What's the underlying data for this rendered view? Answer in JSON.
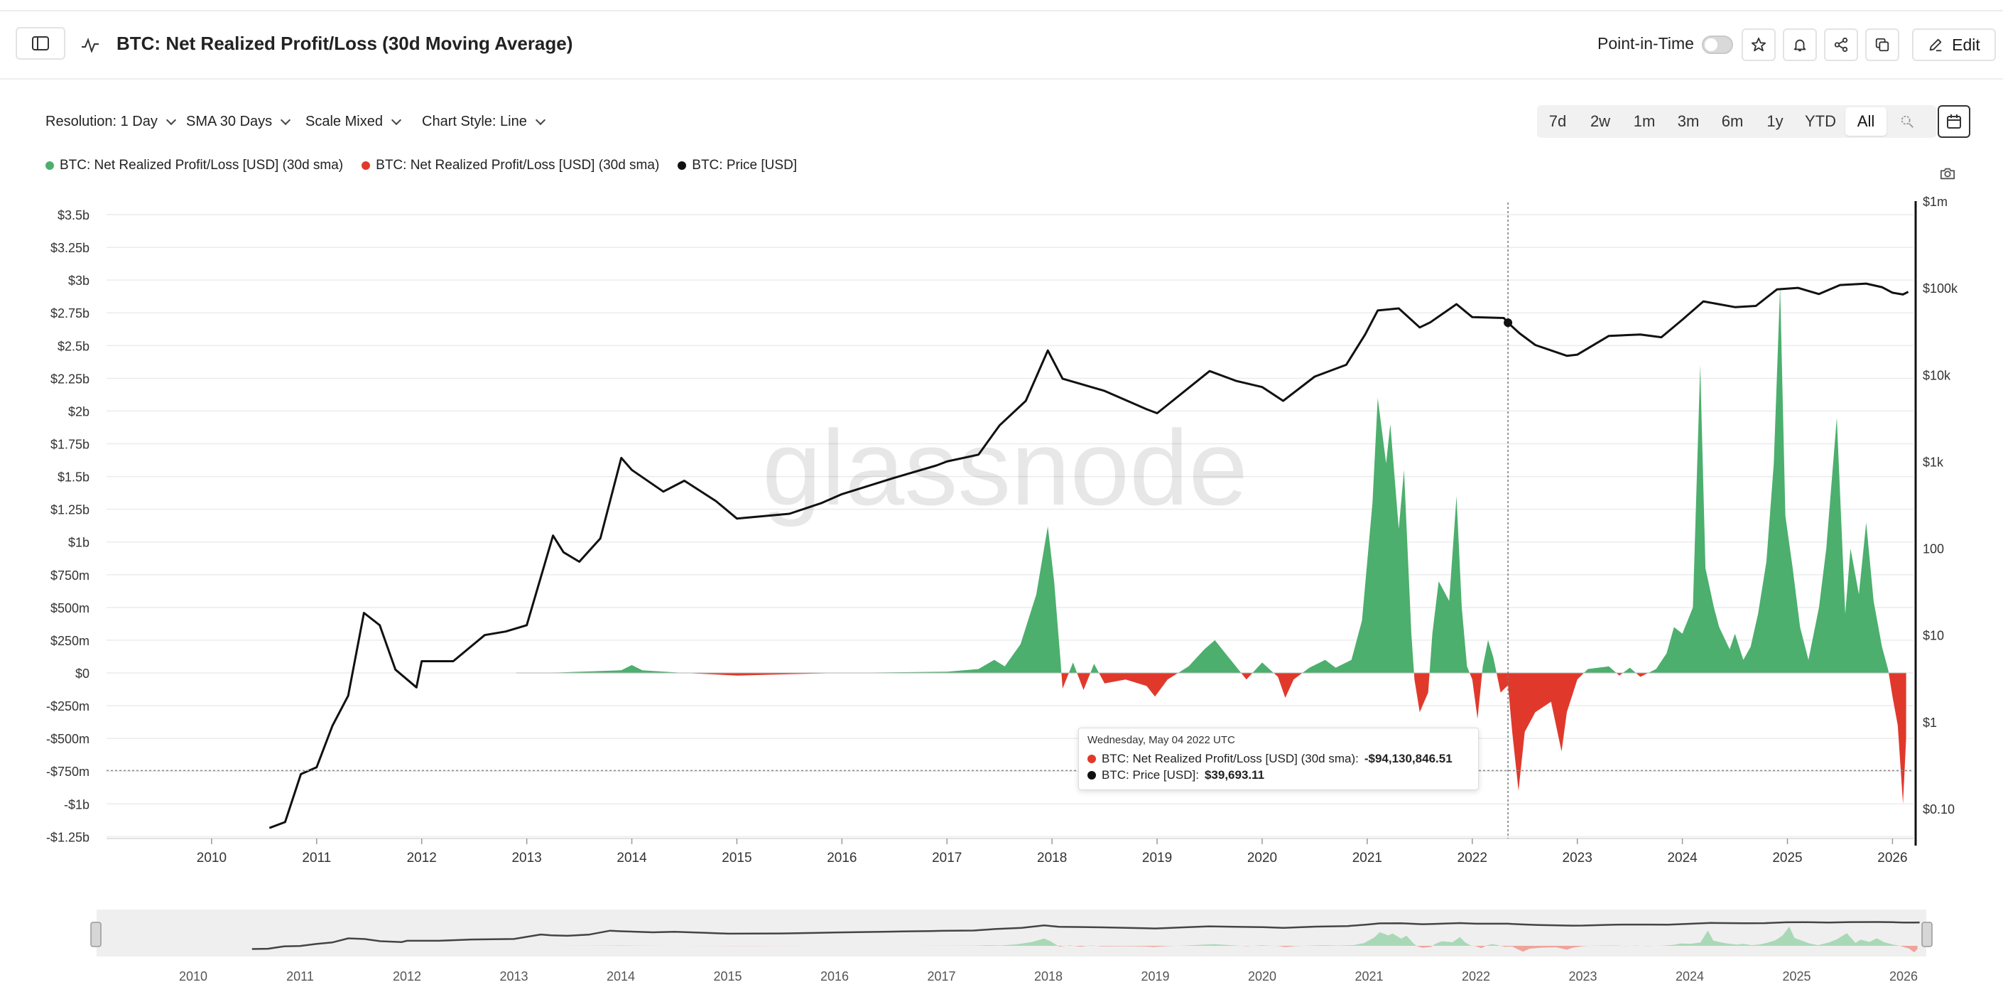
{
  "header": {
    "title": "BTC: Net Realized Profit/Loss (30d Moving Average)",
    "point_in_time_label": "Point-in-Time",
    "edit_label": "Edit"
  },
  "controls": {
    "resolution": "Resolution: 1 Day",
    "sma": "SMA 30 Days",
    "scale": "Scale Mixed",
    "chart_style": "Chart Style: Line"
  },
  "ranges": [
    "7d",
    "2w",
    "1m",
    "3m",
    "6m",
    "1y",
    "YTD",
    "All"
  ],
  "active_range": "All",
  "legend": [
    {
      "label": "BTC: Net Realized Profit/Loss [USD] (30d sma)",
      "color": "#4caf6d"
    },
    {
      "label": "BTC: Net Realized Profit/Loss [USD] (30d sma)",
      "color": "#e0392b"
    },
    {
      "label": "BTC: Price [USD]",
      "color": "#111111"
    }
  ],
  "watermark": "glassnode",
  "tooltip": {
    "date": "Wednesday, May 04 2022 UTC",
    "pnl_label": "BTC: Net Realized Profit/Loss [USD] (30d sma):",
    "pnl_value": "-$94,130,846.51",
    "price_label": "BTC: Price [USD]:",
    "price_value": "$39,693.11"
  },
  "chart_data": {
    "type": "area",
    "title": "BTC: Net Realized Profit/Loss (30d Moving Average)",
    "left_axis_ticks": [
      "$3.5b",
      "$3.25b",
      "$3b",
      "$2.75b",
      "$2.5b",
      "$2.25b",
      "$2b",
      "$1.75b",
      "$1.5b",
      "$1.25b",
      "$1b",
      "$750m",
      "$500m",
      "$250m",
      "$0",
      "-$250m",
      "-$500m",
      "-$750m",
      "-$1b",
      "-$1.25b"
    ],
    "left_axis_range": [
      -1250000000.0,
      3500000000.0
    ],
    "right_axis_ticks": [
      "$1m",
      "$100k",
      "$10k",
      "$1k",
      "100",
      "$10",
      "$1",
      "$0.10"
    ],
    "right_axis_scale": "log",
    "right_axis_range": [
      0.1,
      1000000
    ],
    "x_ticks": [
      "2010",
      "2011",
      "2012",
      "2013",
      "2014",
      "2015",
      "2016",
      "2017",
      "2018",
      "2019",
      "2020",
      "2021",
      "2022",
      "2023",
      "2024",
      "2025",
      "2026"
    ],
    "x_range": [
      2009.0,
      2026.2
    ],
    "grid": true,
    "legend_position": "top-left",
    "series": [
      {
        "name": "BTC: Net Realized Profit/Loss [USD] (30d sma)",
        "unit": "USD",
        "color_positive": "#4caf6d",
        "color_negative": "#e0392b",
        "points": [
          [
            2012.9,
            0
          ],
          [
            2013.3,
            3000000.0
          ],
          [
            2013.9,
            20000000.0
          ],
          [
            2014.0,
            60000000.0
          ],
          [
            2014.1,
            20000000.0
          ],
          [
            2014.5,
            0
          ],
          [
            2015.0,
            -20000000.0
          ],
          [
            2015.5,
            -10000000.0
          ],
          [
            2016.0,
            0
          ],
          [
            2016.5,
            5000000.0
          ],
          [
            2017.0,
            10000000.0
          ],
          [
            2017.3,
            30000000.0
          ],
          [
            2017.45,
            100000000.0
          ],
          [
            2017.55,
            50000000.0
          ],
          [
            2017.7,
            220000000.0
          ],
          [
            2017.85,
            600000000.0
          ],
          [
            2017.96,
            1120000000.0
          ],
          [
            2018.02,
            700000000.0
          ],
          [
            2018.08,
            100000000.0
          ],
          [
            2018.1,
            -120000000.0
          ],
          [
            2018.2,
            80000000.0
          ],
          [
            2018.3,
            -130000000.0
          ],
          [
            2018.4,
            70000000.0
          ],
          [
            2018.5,
            -80000000.0
          ],
          [
            2018.7,
            -50000000.0
          ],
          [
            2018.9,
            -100000000.0
          ],
          [
            2018.98,
            -180000000.0
          ],
          [
            2019.1,
            -50000000.0
          ],
          [
            2019.3,
            50000000.0
          ],
          [
            2019.45,
            180000000.0
          ],
          [
            2019.55,
            250000000.0
          ],
          [
            2019.65,
            150000000.0
          ],
          [
            2019.75,
            50000000.0
          ],
          [
            2019.85,
            -50000000.0
          ],
          [
            2020.0,
            80000000.0
          ],
          [
            2020.15,
            -30000000.0
          ],
          [
            2020.22,
            -190000000.0
          ],
          [
            2020.3,
            -50000000.0
          ],
          [
            2020.45,
            40000000.0
          ],
          [
            2020.6,
            100000000.0
          ],
          [
            2020.7,
            40000000.0
          ],
          [
            2020.85,
            100000000.0
          ],
          [
            2020.95,
            400000000.0
          ],
          [
            2021.0,
            850000000.0
          ],
          [
            2021.05,
            1300000000.0
          ],
          [
            2021.1,
            2100000000.0
          ],
          [
            2021.18,
            1600000000.0
          ],
          [
            2021.22,
            1900000000.0
          ],
          [
            2021.3,
            1100000000.0
          ],
          [
            2021.35,
            1550000000.0
          ],
          [
            2021.42,
            300000000.0
          ],
          [
            2021.45,
            -50000000.0
          ],
          [
            2021.5,
            -300000000.0
          ],
          [
            2021.58,
            -150000000.0
          ],
          [
            2021.62,
            300000000.0
          ],
          [
            2021.68,
            700000000.0
          ],
          [
            2021.78,
            550000000.0
          ],
          [
            2021.85,
            1350000000.0
          ],
          [
            2021.9,
            500000000.0
          ],
          [
            2021.95,
            50000000.0
          ],
          [
            2022.0,
            -50000000.0
          ],
          [
            2022.05,
            -350000000.0
          ],
          [
            2022.1,
            50000000.0
          ],
          [
            2022.15,
            250000000.0
          ],
          [
            2022.2,
            120000000.0
          ],
          [
            2022.27,
            -150000000.0
          ],
          [
            2022.34,
            -94000000.0
          ],
          [
            2022.38,
            -450000000.0
          ],
          [
            2022.44,
            -900000000.0
          ],
          [
            2022.5,
            -450000000.0
          ],
          [
            2022.6,
            -300000000.0
          ],
          [
            2022.75,
            -220000000.0
          ],
          [
            2022.85,
            -600000000.0
          ],
          [
            2022.9,
            -300000000.0
          ],
          [
            2023.0,
            -50000000.0
          ],
          [
            2023.1,
            30000000.0
          ],
          [
            2023.2,
            40000000.0
          ],
          [
            2023.3,
            50000000.0
          ],
          [
            2023.4,
            -20000000.0
          ],
          [
            2023.5,
            40000000.0
          ],
          [
            2023.6,
            -30000000.0
          ],
          [
            2023.75,
            30000000.0
          ],
          [
            2023.85,
            150000000.0
          ],
          [
            2023.92,
            350000000.0
          ],
          [
            2024.0,
            300000000.0
          ],
          [
            2024.1,
            500000000.0
          ],
          [
            2024.17,
            2350000000.0
          ],
          [
            2024.22,
            800000000.0
          ],
          [
            2024.3,
            500000000.0
          ],
          [
            2024.35,
            350000000.0
          ],
          [
            2024.45,
            180000000.0
          ],
          [
            2024.5,
            300000000.0
          ],
          [
            2024.58,
            100000000.0
          ],
          [
            2024.65,
            200000000.0
          ],
          [
            2024.72,
            450000000.0
          ],
          [
            2024.8,
            850000000.0
          ],
          [
            2024.87,
            1600000000.0
          ],
          [
            2024.93,
            2950000000.0
          ],
          [
            2024.98,
            1200000000.0
          ],
          [
            2025.05,
            800000000.0
          ],
          [
            2025.12,
            350000000.0
          ],
          [
            2025.2,
            100000000.0
          ],
          [
            2025.3,
            500000000.0
          ],
          [
            2025.37,
            950000000.0
          ],
          [
            2025.47,
            1950000000.0
          ],
          [
            2025.55,
            450000000.0
          ],
          [
            2025.6,
            950000000.0
          ],
          [
            2025.68,
            600000000.0
          ],
          [
            2025.75,
            1150000000.0
          ],
          [
            2025.82,
            550000000.0
          ],
          [
            2025.9,
            200000000.0
          ],
          [
            2025.96,
            20000000.0
          ],
          [
            2026.0,
            -180000000.0
          ],
          [
            2026.05,
            -400000000.0
          ],
          [
            2026.1,
            -1000000000.0
          ],
          [
            2026.13,
            -500000000.0
          ]
        ]
      },
      {
        "name": "BTC: Price [USD]",
        "unit": "USD",
        "color": "#111111",
        "points": [
          [
            2010.55,
            0.06
          ],
          [
            2010.7,
            0.07
          ],
          [
            2010.85,
            0.25
          ],
          [
            2011.0,
            0.3
          ],
          [
            2011.15,
            0.9
          ],
          [
            2011.3,
            2
          ],
          [
            2011.45,
            18
          ],
          [
            2011.6,
            13
          ],
          [
            2011.75,
            4
          ],
          [
            2011.95,
            2.5
          ],
          [
            2012.0,
            5
          ],
          [
            2012.3,
            5
          ],
          [
            2012.6,
            10
          ],
          [
            2012.8,
            11
          ],
          [
            2013.0,
            13
          ],
          [
            2013.25,
            140
          ],
          [
            2013.35,
            90
          ],
          [
            2013.5,
            70
          ],
          [
            2013.7,
            130
          ],
          [
            2013.9,
            1100
          ],
          [
            2014.0,
            800
          ],
          [
            2014.3,
            450
          ],
          [
            2014.5,
            600
          ],
          [
            2014.8,
            350
          ],
          [
            2015.0,
            220
          ],
          [
            2015.5,
            250
          ],
          [
            2015.8,
            330
          ],
          [
            2016.0,
            420
          ],
          [
            2016.5,
            650
          ],
          [
            2016.9,
            900
          ],
          [
            2017.0,
            1000
          ],
          [
            2017.3,
            1200
          ],
          [
            2017.5,
            2600
          ],
          [
            2017.75,
            5000
          ],
          [
            2017.96,
            19000
          ],
          [
            2018.1,
            9000
          ],
          [
            2018.5,
            6500
          ],
          [
            2018.9,
            4000
          ],
          [
            2019.0,
            3600
          ],
          [
            2019.5,
            11000
          ],
          [
            2019.75,
            8500
          ],
          [
            2020.0,
            7200
          ],
          [
            2020.2,
            5000
          ],
          [
            2020.5,
            9500
          ],
          [
            2020.8,
            13000
          ],
          [
            2020.98,
            29000
          ],
          [
            2021.1,
            55000
          ],
          [
            2021.3,
            58000
          ],
          [
            2021.5,
            35000
          ],
          [
            2021.6,
            40000
          ],
          [
            2021.85,
            65000
          ],
          [
            2022.0,
            46000
          ],
          [
            2022.3,
            45000
          ],
          [
            2022.34,
            39693
          ],
          [
            2022.45,
            30000
          ],
          [
            2022.6,
            22000
          ],
          [
            2022.9,
            16500
          ],
          [
            2023.0,
            17000
          ],
          [
            2023.3,
            28000
          ],
          [
            2023.6,
            29000
          ],
          [
            2023.8,
            27000
          ],
          [
            2024.0,
            43000
          ],
          [
            2024.2,
            70000
          ],
          [
            2024.5,
            60000
          ],
          [
            2024.7,
            62000
          ],
          [
            2024.9,
            96000
          ],
          [
            2025.1,
            100000
          ],
          [
            2025.3,
            85000
          ],
          [
            2025.5,
            108000
          ],
          [
            2025.75,
            112000
          ],
          [
            2025.9,
            102000
          ],
          [
            2026.0,
            88000
          ],
          [
            2026.1,
            84000
          ],
          [
            2026.15,
            90000
          ]
        ]
      }
    ],
    "crosshair_x": 2022.34,
    "crosshair_y": -94000000.0,
    "navigator_x_ticks": [
      "2010",
      "2011",
      "2012",
      "2013",
      "2014",
      "2015",
      "2016",
      "2017",
      "2018",
      "2019",
      "2020",
      "2021",
      "2022",
      "2023",
      "2024",
      "2025",
      "2026"
    ]
  }
}
